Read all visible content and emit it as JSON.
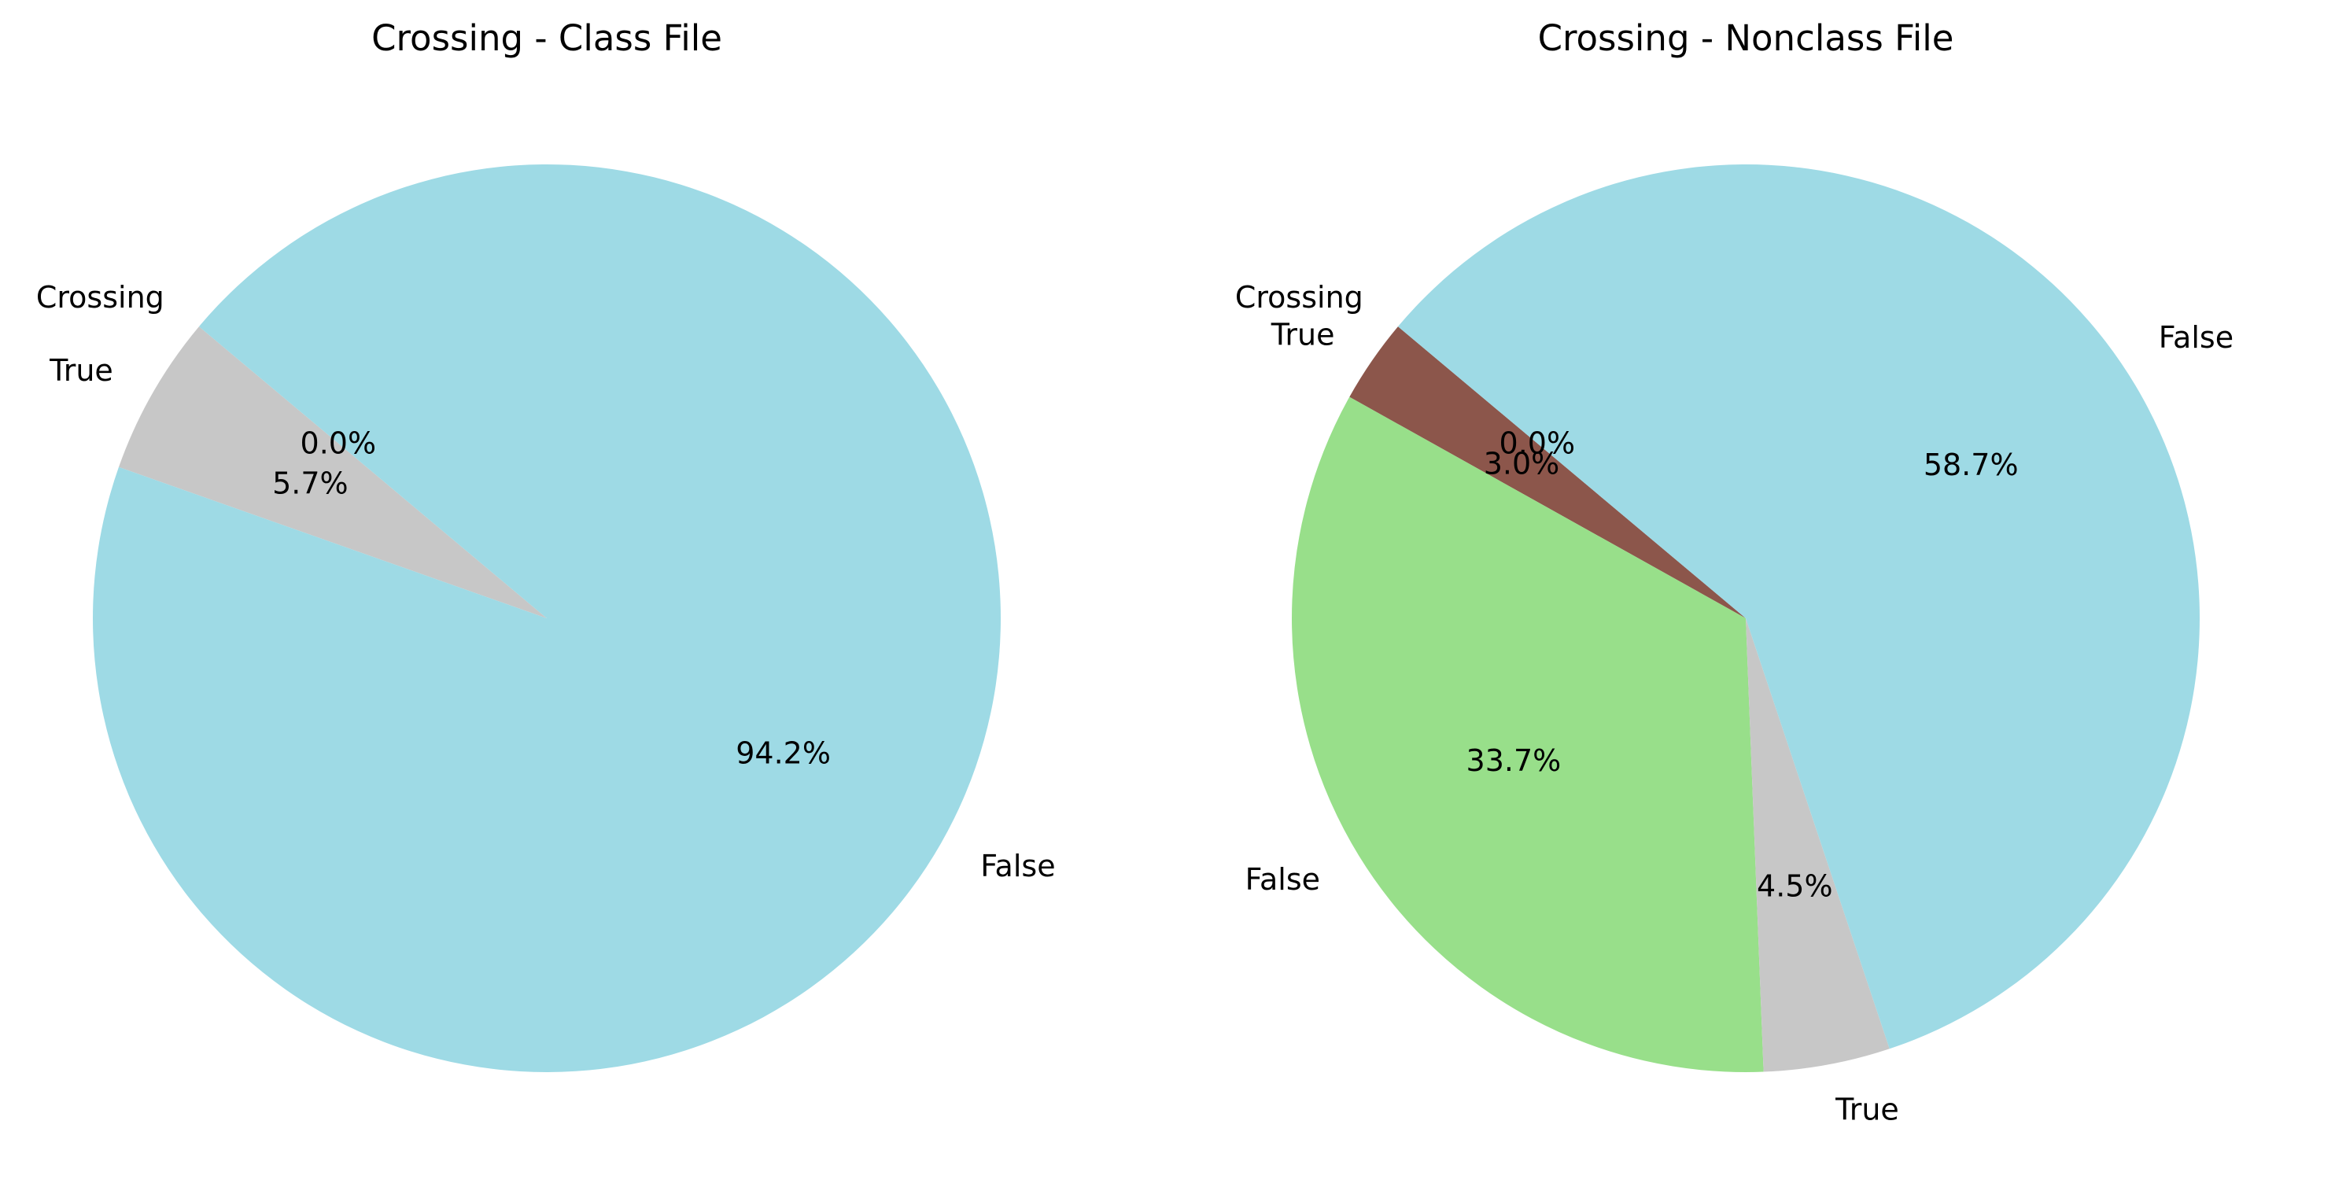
{
  "chart_data": [
    {
      "type": "pie",
      "title": "Crossing - Class File",
      "start_angle_deg": 140,
      "slices": [
        {
          "label": "Crossing",
          "value": 0.0,
          "pct_label": "0.0%",
          "color": "#1f77b4"
        },
        {
          "label": "True",
          "value": 5.7,
          "pct_label": "5.7%",
          "color": "#c7c7c7"
        },
        {
          "label": "False",
          "value": 94.2,
          "pct_label": "94.2%",
          "color": "#9edae5"
        }
      ]
    },
    {
      "type": "pie",
      "title": "Crossing - Nonclass File",
      "start_angle_deg": 140,
      "slices": [
        {
          "label": "Crossing",
          "value": 0.0,
          "pct_label": "0.0%",
          "color": "#1f77b4"
        },
        {
          "label": "True",
          "value": 3.0,
          "pct_label": "3.0%",
          "color": "#8c564b"
        },
        {
          "label": "False",
          "value": 33.7,
          "pct_label": "33.7%",
          "color": "#98df8a"
        },
        {
          "label": "True",
          "value": 4.5,
          "pct_label": "4.5%",
          "color": "#c7c7c7"
        },
        {
          "label": "False",
          "value": 58.7,
          "pct_label": "58.7%",
          "color": "#9edae5"
        }
      ]
    }
  ]
}
